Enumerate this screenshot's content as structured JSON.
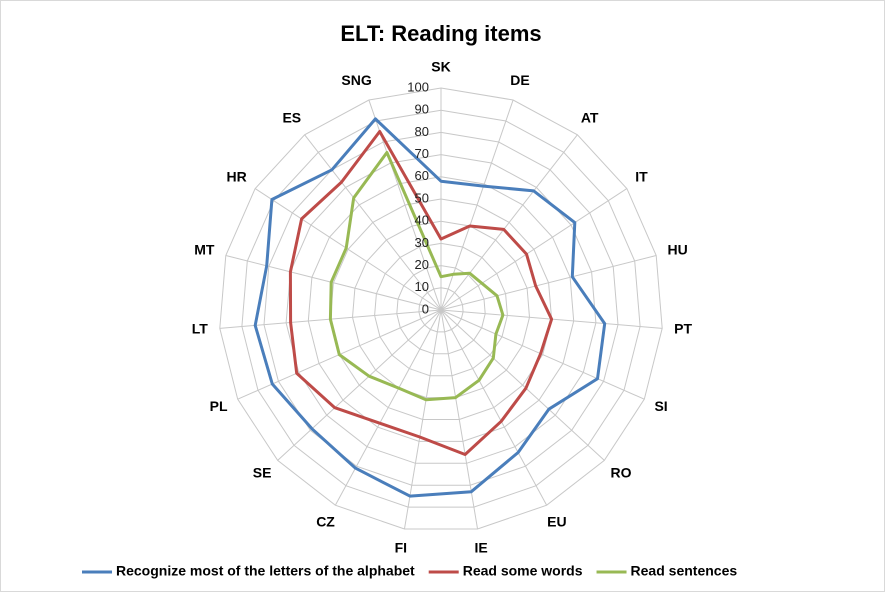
{
  "chart_data": {
    "type": "radar",
    "title": "ELT: Reading items",
    "categories": [
      "SK",
      "DE",
      "AT",
      "IT",
      "HU",
      "PT",
      "SI",
      "RO",
      "EU",
      "IE",
      "FI",
      "CZ",
      "SE",
      "PL",
      "LT",
      "MT",
      "HR",
      "ES",
      "SNG"
    ],
    "ylim": [
      0,
      100
    ],
    "yticks": [
      0,
      10,
      20,
      30,
      40,
      50,
      60,
      70,
      80,
      90,
      100
    ],
    "grid": true,
    "legend": "bottom",
    "series": [
      {
        "name": "Recognize most of the letters of the alphabet",
        "color": "#4a7ebb",
        "values": [
          58,
          59,
          68,
          72,
          61,
          74,
          77,
          66,
          73,
          83,
          85,
          81,
          79,
          83,
          84,
          81,
          91,
          80,
          91
        ]
      },
      {
        "name": "Read some words",
        "color": "#be4b48",
        "values": [
          32,
          40,
          46,
          46,
          44,
          50,
          49,
          52,
          57,
          66,
          58,
          58,
          65,
          71,
          68,
          70,
          75,
          73,
          85
        ]
      },
      {
        "name": "Read sentences",
        "color": "#98b954",
        "values": [
          15,
          17,
          21,
          22,
          26,
          28,
          27,
          32,
          36,
          40,
          41,
          40,
          44,
          50,
          50,
          51,
          51,
          64,
          75
        ]
      }
    ]
  }
}
